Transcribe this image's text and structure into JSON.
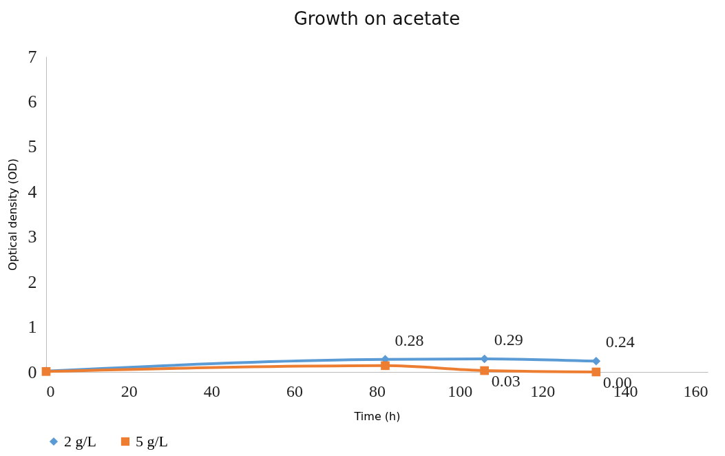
{
  "chart_data": {
    "type": "line",
    "title": "Growth on acetate",
    "xlabel": "Time (h)",
    "ylabel": "Optical density (OD)",
    "x": [
      0,
      82,
      106,
      133
    ],
    "series": [
      {
        "name": "2 g/L",
        "color": "#5b9bd5",
        "marker": "diamond",
        "values": [
          0.02,
          0.28,
          0.29,
          0.24
        ],
        "value_labels": [
          null,
          "0.28",
          "0.29",
          "0.24"
        ]
      },
      {
        "name": "5 g/L",
        "color": "#ed7d31",
        "marker": "square",
        "values": [
          0.01,
          0.14,
          0.03,
          0.0
        ],
        "value_labels": [
          null,
          null,
          "0.03",
          "0.00"
        ]
      }
    ],
    "xlim": [
      0,
      160
    ],
    "xticks": [
      0,
      20,
      40,
      60,
      80,
      100,
      120,
      140,
      160
    ],
    "ylim": [
      0,
      7
    ],
    "yticks": [
      0,
      1,
      2,
      3,
      4,
      5,
      6,
      7
    ],
    "grid": false,
    "legend": "bottom"
  }
}
